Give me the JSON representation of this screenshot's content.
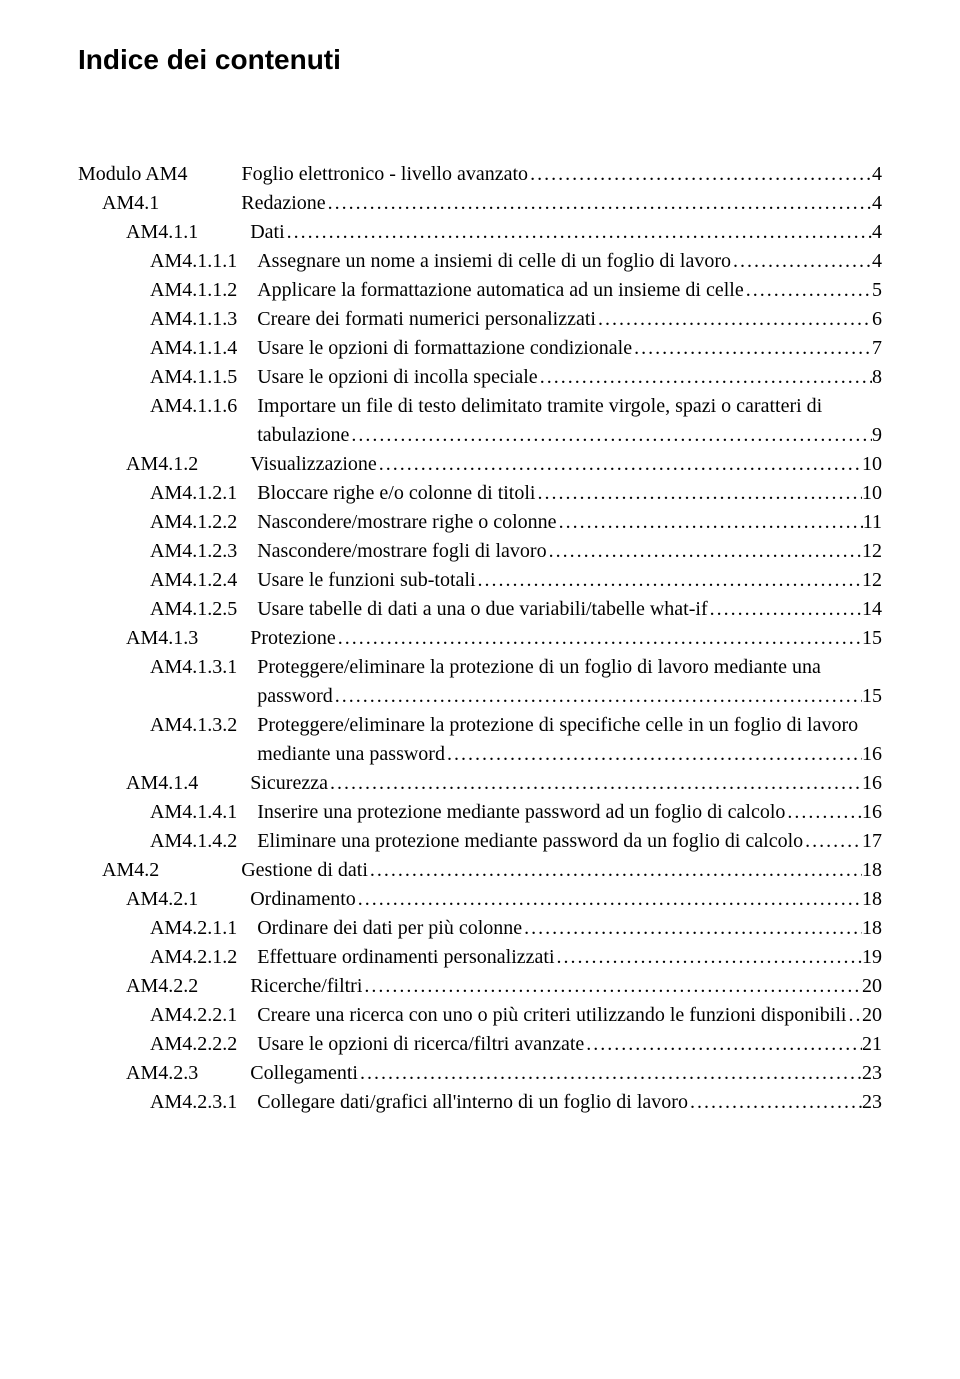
{
  "title": "Indice dei contenuti",
  "leader_char": ".",
  "colors": {
    "text": "#000000",
    "background": "#ffffff"
  },
  "typography": {
    "title_font": "Arial",
    "title_size_pt": 21,
    "title_weight": "bold",
    "body_font": "Times New Roman",
    "body_size_pt": 15
  },
  "entries": [
    {
      "level": 0,
      "num": "Modulo AM4",
      "label": "Foglio elettronico - livello avanzato",
      "page": "4"
    },
    {
      "level": 1,
      "num": "AM4.1",
      "label": "Redazione",
      "page": "4"
    },
    {
      "level": 2,
      "num": "AM4.1.1",
      "label": "Dati",
      "page": "4"
    },
    {
      "level": 3,
      "num": "AM4.1.1.1",
      "label": "Assegnare un nome a insiemi di celle di un foglio di lavoro",
      "page": "4"
    },
    {
      "level": 3,
      "num": "AM4.1.1.2",
      "label": "Applicare la formattazione automatica ad un insieme di celle",
      "page": "5"
    },
    {
      "level": 3,
      "num": "AM4.1.1.3",
      "label": "Creare dei formati numerici personalizzati",
      "page": "6"
    },
    {
      "level": 3,
      "num": "AM4.1.1.4",
      "label": "Usare le opzioni di formattazione condizionale",
      "page": "7"
    },
    {
      "level": 3,
      "num": "AM4.1.1.5",
      "label": "Usare le opzioni di incolla speciale",
      "page": "8"
    },
    {
      "level": 3,
      "num": "AM4.1.1.6",
      "label": "Importare un file di testo delimitato tramite virgole, spazi o caratteri di",
      "page": null,
      "wrap_next": true
    },
    {
      "level": 3,
      "num": "",
      "label": "tabulazione",
      "page": "9",
      "is_continuation": true
    },
    {
      "level": 2,
      "num": "AM4.1.2",
      "label": "Visualizzazione",
      "page": "10"
    },
    {
      "level": 3,
      "num": "AM4.1.2.1",
      "label": "Bloccare righe e/o colonne di titoli",
      "page": "10"
    },
    {
      "level": 3,
      "num": "AM4.1.2.2",
      "label": "Nascondere/mostrare righe o colonne",
      "page": "11"
    },
    {
      "level": 3,
      "num": "AM4.1.2.3",
      "label": "Nascondere/mostrare fogli di lavoro",
      "page": "12"
    },
    {
      "level": 3,
      "num": "AM4.1.2.4",
      "label": "Usare le funzioni sub-totali",
      "page": "12"
    },
    {
      "level": 3,
      "num": "AM4.1.2.5",
      "label": "Usare tabelle di dati a una o due variabili/tabelle what-if",
      "page": "14"
    },
    {
      "level": 2,
      "num": "AM4.1.3",
      "label": "Protezione",
      "page": "15"
    },
    {
      "level": 3,
      "num": "AM4.1.3.1",
      "label": "Proteggere/eliminare la protezione di un foglio di lavoro mediante una",
      "page": null,
      "wrap_next": true
    },
    {
      "level": 3,
      "num": "",
      "label": "password",
      "page": "15",
      "is_continuation": true
    },
    {
      "level": 3,
      "num": "AM4.1.3.2",
      "label": "Proteggere/eliminare la protezione di specifiche celle in un foglio di lavoro",
      "page": null,
      "wrap_next": true
    },
    {
      "level": 3,
      "num": "",
      "label": "mediante una password",
      "page": "16",
      "is_continuation": true
    },
    {
      "level": 2,
      "num": "AM4.1.4",
      "label": "Sicurezza",
      "page": "16"
    },
    {
      "level": 3,
      "num": "AM4.1.4.1",
      "label": "Inserire una protezione mediante password ad un foglio di calcolo",
      "page": "16"
    },
    {
      "level": 3,
      "num": "AM4.1.4.2",
      "label": "Eliminare una protezione mediante password da un foglio di calcolo",
      "page": "17"
    },
    {
      "level": 1,
      "num": "AM4.2",
      "label": "Gestione di dati",
      "page": "18"
    },
    {
      "level": 2,
      "num": "AM4.2.1",
      "label": "Ordinamento",
      "page": "18"
    },
    {
      "level": 3,
      "num": "AM4.2.1.1",
      "label": "Ordinare dei dati per più colonne",
      "page": "18"
    },
    {
      "level": 3,
      "num": "AM4.2.1.2",
      "label": "Effettuare ordinamenti personalizzati",
      "page": "19"
    },
    {
      "level": 2,
      "num": "AM4.2.2",
      "label": "Ricerche/filtri",
      "page": "20"
    },
    {
      "level": 3,
      "num": "AM4.2.2.1",
      "label": "Creare una ricerca con uno o più criteri utilizzando le funzioni disponibili",
      "page": "20"
    },
    {
      "level": 3,
      "num": "AM4.2.2.2",
      "label": "Usare le opzioni di ricerca/filtri avanzate",
      "page": "21"
    },
    {
      "level": 2,
      "num": "AM4.2.3",
      "label": "Collegamenti",
      "page": "23"
    },
    {
      "level": 3,
      "num": "AM4.2.3.1",
      "label": "Collegare dati/grafici all'interno di un foglio di lavoro",
      "page": "23"
    }
  ]
}
